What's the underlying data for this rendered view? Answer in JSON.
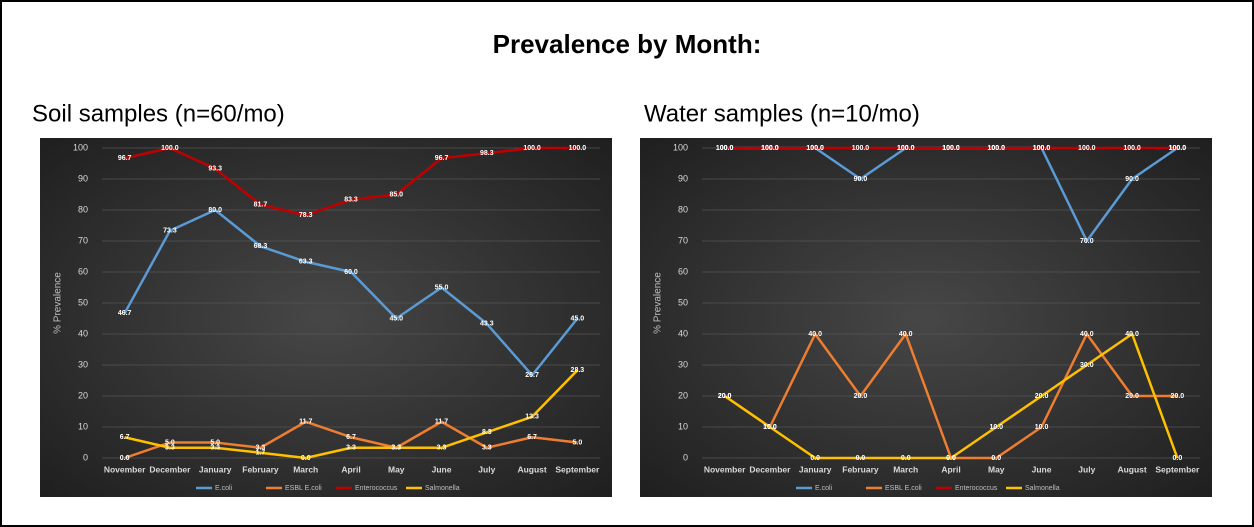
{
  "title": "Prevalence by Month:",
  "chart_data": [
    {
      "type": "line",
      "title": "Soil samples (n=60/mo)",
      "y_label": "% Prevalence",
      "categories": [
        "November",
        "December",
        "January",
        "February",
        "March",
        "April",
        "May",
        "June",
        "July",
        "August",
        "September"
      ],
      "ylim": [
        0,
        100
      ],
      "yticks": [
        0,
        10,
        20,
        30,
        40,
        50,
        60,
        70,
        80,
        90,
        100
      ],
      "grid": true,
      "series": [
        {
          "name": "E.coli",
          "color": "#5b9bd5",
          "values": [
            46.7,
            73.3,
            80.0,
            68.3,
            63.3,
            60.0,
            45.0,
            55.0,
            43.3,
            26.7,
            45.0
          ],
          "value_labels": [
            "46.7",
            "73.3",
            "80.0",
            "68.3",
            "63.3",
            "60.0",
            "45.0",
            "55.0",
            "43.3",
            "26.7",
            "45.0"
          ]
        },
        {
          "name": "ESBL E.coli",
          "color": "#ed7d31",
          "values": [
            0.0,
            5.0,
            5.0,
            3.3,
            11.7,
            6.7,
            3.3,
            11.7,
            3.3,
            6.7,
            5.0
          ],
          "value_labels": [
            "0.0",
            "5.0",
            "5.0",
            "3.3",
            "11.7",
            "6.7",
            "3.3",
            "11.7",
            "3.3",
            "6.7",
            "5.0"
          ]
        },
        {
          "name": "Enterococcus",
          "color": "#c00000",
          "values": [
            96.7,
            100.0,
            93.3,
            81.7,
            78.3,
            83.3,
            85.0,
            96.7,
            98.3,
            100.0,
            100.0
          ],
          "value_labels": [
            "96.7",
            "100.0",
            "93.3",
            "81.7",
            "78.3",
            "83.3",
            "85.0",
            "96.7",
            "98.3",
            "100.0",
            "100.0"
          ]
        },
        {
          "name": "Salmonella",
          "color": "#ffc000",
          "values": [
            6.7,
            3.3,
            3.3,
            1.7,
            0.0,
            3.3,
            3.3,
            3.3,
            8.3,
            13.3,
            28.3
          ],
          "value_labels": [
            "6.7",
            "3.3",
            "3.3",
            "1.7",
            "0.0",
            "3.3",
            "3.3",
            "3.3",
            "8.3",
            "13.3",
            "28.3"
          ]
        }
      ]
    },
    {
      "type": "line",
      "title": "Water samples (n=10/mo)",
      "y_label": "% Prevalence",
      "categories": [
        "November",
        "December",
        "January",
        "February",
        "March",
        "April",
        "May",
        "June",
        "July",
        "August",
        "September"
      ],
      "ylim": [
        0,
        100
      ],
      "yticks": [
        0,
        10,
        20,
        30,
        40,
        50,
        60,
        70,
        80,
        90,
        100
      ],
      "grid": true,
      "series": [
        {
          "name": "E.coli",
          "color": "#5b9bd5",
          "values": [
            100,
            100,
            100,
            90,
            100,
            100,
            100,
            100,
            70,
            90,
            100
          ],
          "value_labels": [
            "100.0",
            "100.0",
            "100.0",
            "90.0",
            "100.0",
            "100.0",
            "100.0",
            "100.0",
            "70.0",
            "90.0",
            "100.0"
          ]
        },
        {
          "name": "ESBL E.coli",
          "color": "#ed7d31",
          "values": [
            20,
            10,
            40,
            20,
            40,
            0,
            0,
            10,
            40,
            20,
            20
          ],
          "value_labels": [
            "20.0",
            "10.0",
            "40.0",
            "20.0",
            "40.0",
            "0.0",
            "0.0",
            "10.0",
            "40.0",
            "20.0",
            "20.0"
          ]
        },
        {
          "name": "Enterococcus",
          "color": "#c00000",
          "values": [
            100,
            100,
            100,
            100,
            100,
            100,
            100,
            100,
            100,
            100,
            100
          ],
          "value_labels": [
            "100.0",
            "100.0",
            "100.0",
            "100.0",
            "100.0",
            "100.0",
            "100.0",
            "100.0",
            "100.0",
            "100.0",
            "100.0"
          ]
        },
        {
          "name": "Salmonella",
          "color": "#ffc000",
          "values": [
            20,
            10,
            0,
            0,
            0,
            0,
            10,
            20,
            30,
            40,
            0
          ],
          "value_labels": [
            "20.0",
            "10.0",
            "0.0",
            "0.0",
            "0.0",
            "0.0",
            "10.0",
            "20.0",
            "30.0",
            "40.0",
            "0.0"
          ]
        }
      ]
    }
  ]
}
